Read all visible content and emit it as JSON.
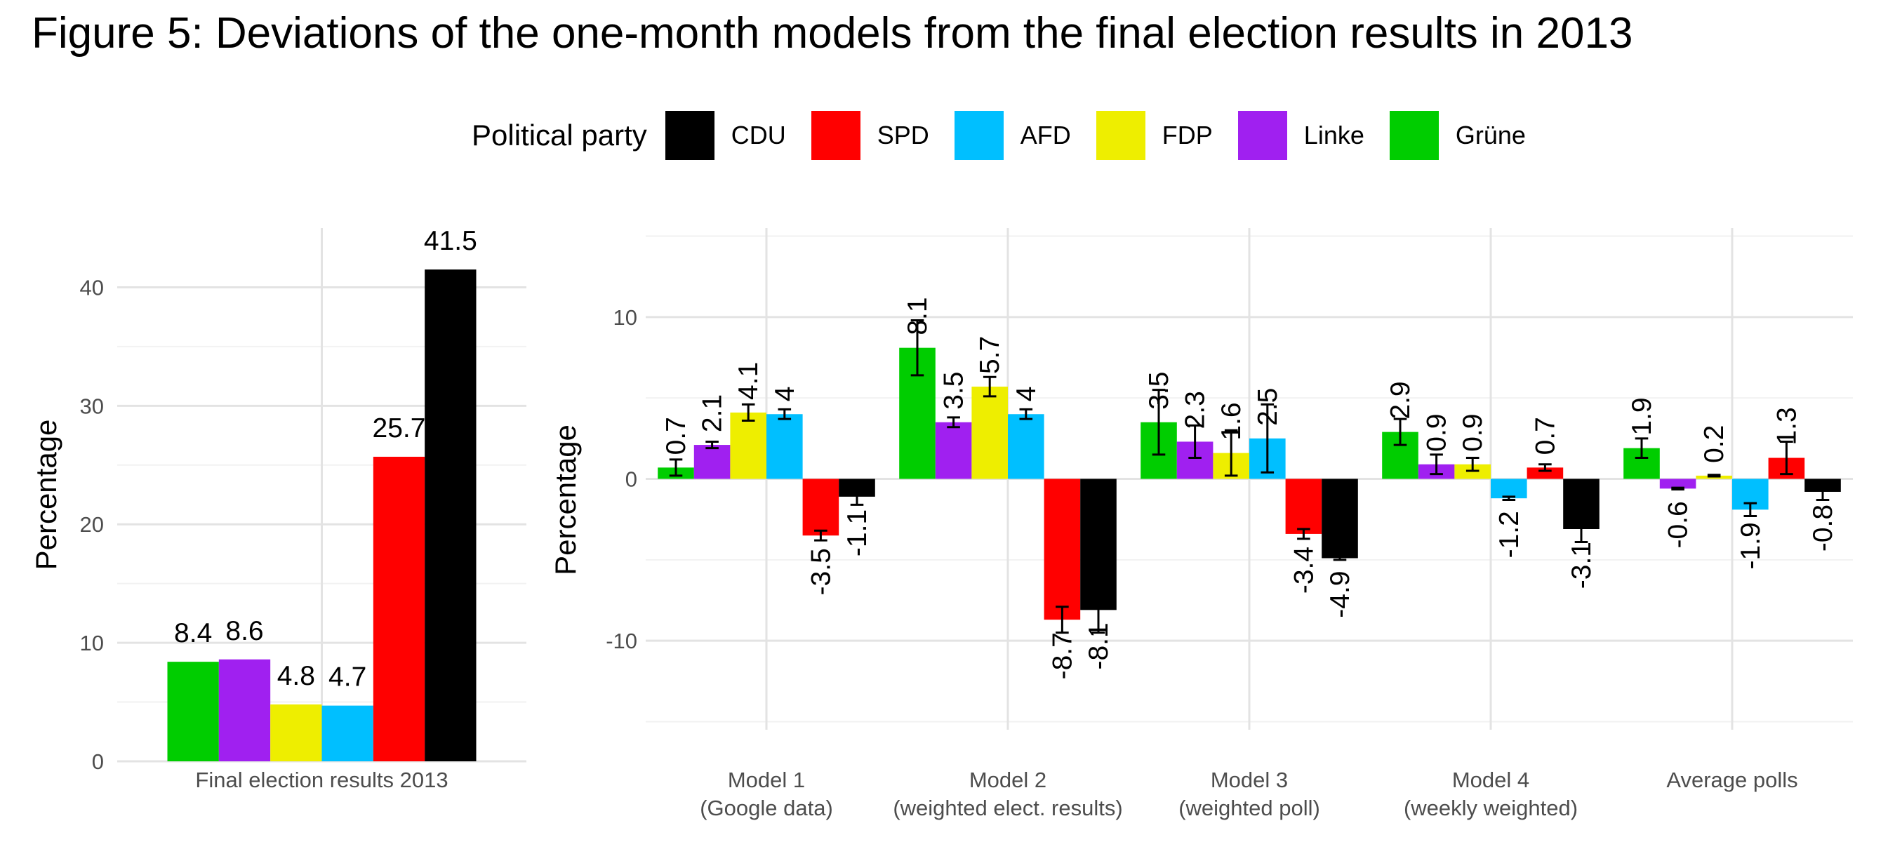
{
  "title": "Figure 5: Deviations of the one-month models from the final election results in 2013",
  "legend": {
    "title": "Political party",
    "items": [
      {
        "label": "CDU",
        "color": "#000000"
      },
      {
        "label": "SPD",
        "color": "#ff0000"
      },
      {
        "label": "AFD",
        "color": "#00bfff"
      },
      {
        "label": "FDP",
        "color": "#eeee00"
      },
      {
        "label": "Linke",
        "color": "#a020f0"
      },
      {
        "label": "Grüne",
        "color": "#00cd00"
      }
    ]
  },
  "chart_data": [
    {
      "type": "bar",
      "categories": [
        "Final election results 2013"
      ],
      "series": [
        {
          "name": "Grüne",
          "color": "#00cd00",
          "values": [
            8.4
          ]
        },
        {
          "name": "Linke",
          "color": "#a020f0",
          "values": [
            8.6
          ]
        },
        {
          "name": "FDP",
          "color": "#eeee00",
          "values": [
            4.8
          ]
        },
        {
          "name": "AFD",
          "color": "#00bfff",
          "values": [
            4.7
          ]
        },
        {
          "name": "SPD",
          "color": "#ff0000",
          "values": [
            25.7
          ]
        },
        {
          "name": "CDU",
          "color": "#000000",
          "values": [
            41.5
          ]
        }
      ],
      "xlabel": "",
      "ylabel": "Percentage",
      "ylim": [
        0,
        45
      ],
      "yticks": [
        "0",
        "10",
        "20",
        "30",
        "40"
      ],
      "grid": true
    },
    {
      "type": "bar",
      "categories": [
        [
          "Model 1",
          "(Google data)"
        ],
        [
          "Model 2",
          "(weighted elect. results)"
        ],
        [
          "Model 3",
          "(weighted poll)"
        ],
        [
          "Model 4",
          "(weekly weighted)"
        ],
        [
          "Average polls"
        ]
      ],
      "series": [
        {
          "name": "Grüne",
          "color": "#00cd00",
          "values": [
            0.7,
            8.1,
            3.5,
            2.9,
            1.9
          ],
          "error": [
            0.5,
            1.7,
            2.0,
            0.8,
            0.6
          ]
        },
        {
          "name": "Linke",
          "color": "#a020f0",
          "values": [
            2.1,
            3.5,
            2.3,
            0.9,
            -0.6
          ],
          "error": [
            0.2,
            0.3,
            1.0,
            0.6,
            0.05
          ]
        },
        {
          "name": "FDP",
          "color": "#eeee00",
          "values": [
            4.1,
            5.7,
            1.6,
            0.9,
            0.2
          ],
          "error": [
            0.5,
            0.6,
            1.4,
            0.4,
            0.05
          ]
        },
        {
          "name": "AFD",
          "color": "#00bfff",
          "values": [
            4.0,
            4.0,
            2.5,
            -1.2,
            -1.9
          ],
          "error": [
            0.3,
            0.3,
            2.1,
            0.1,
            0.4
          ]
        },
        {
          "name": "SPD",
          "color": "#ff0000",
          "values": [
            -3.5,
            -8.7,
            -3.4,
            0.7,
            1.3
          ],
          "error": [
            0.3,
            0.8,
            0.3,
            0.2,
            1.0
          ]
        },
        {
          "name": "CDU",
          "color": "#000000",
          "values": [
            -1.1,
            -8.1,
            -4.9,
            -3.1,
            -0.8
          ],
          "error": [
            0.5,
            1.4,
            0.1,
            0.8,
            0.5
          ]
        }
      ],
      "value_labels": [
        [
          "0.7",
          "8.1",
          "3.5",
          "2.9",
          "1.9"
        ],
        [
          "2.1",
          "3.5",
          "2.3",
          "0.9",
          "-0.6"
        ],
        [
          "4.1",
          "5.7",
          "1.6",
          "0.9",
          "0.2"
        ],
        [
          "4",
          "4",
          "2.5",
          "-1.2",
          "-1.9"
        ],
        [
          "-3.5",
          "-8.7",
          "-3.4",
          "0.7",
          "1.3"
        ],
        [
          "-1.1",
          "-8.1",
          "-4.9",
          "-3.1",
          "-0.8"
        ]
      ],
      "xlabel": "",
      "ylabel": "Percentage",
      "ylim": [
        -15.5,
        15.5
      ],
      "yticks": [
        "-10",
        "0",
        "10"
      ],
      "grid": true
    }
  ]
}
